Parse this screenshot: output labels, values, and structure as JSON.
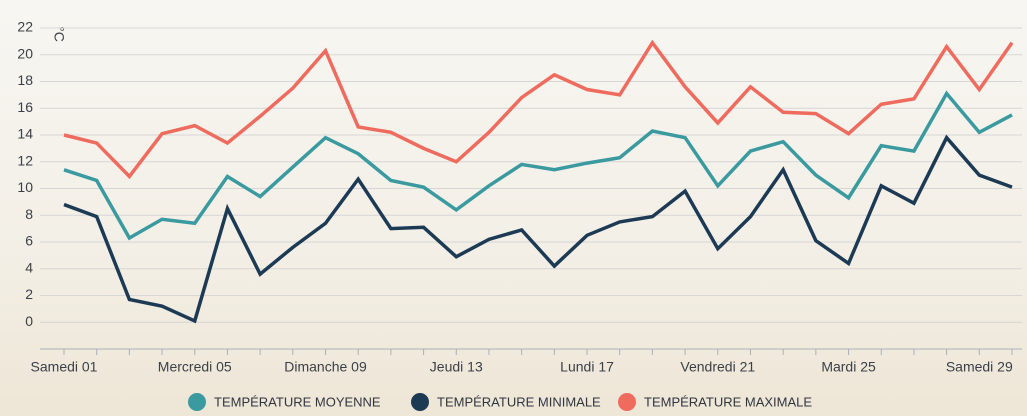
{
  "chart_data": {
    "type": "line",
    "y_label": "°C",
    "categories": [
      "Samedi 01",
      null,
      null,
      null,
      "Mercredi 05",
      null,
      null,
      null,
      "Dimanche 09",
      null,
      null,
      null,
      "Jeudi 13",
      null,
      null,
      null,
      "Lundi 17",
      null,
      null,
      null,
      "Vendredi 21",
      null,
      null,
      null,
      "Mardi 25",
      null,
      null,
      null,
      "Samedi 29",
      null
    ],
    "series": [
      {
        "name": "TEMPÉRATURE MOYENNE",
        "color": "#3a9aa0",
        "values": [
          11.4,
          10.6,
          6.3,
          7.7,
          7.4,
          10.9,
          9.4,
          11.6,
          13.8,
          12.6,
          10.6,
          10.1,
          8.4,
          10.2,
          11.8,
          11.4,
          11.9,
          12.3,
          14.3,
          13.8,
          10.2,
          12.8,
          13.5,
          11.0,
          9.3,
          13.2,
          12.8,
          17.1,
          14.2,
          15.5
        ]
      },
      {
        "name": "TEMPÉRATURE MINIMALE",
        "color": "#1d3a55",
        "values": [
          8.8,
          7.9,
          1.7,
          1.2,
          0.1,
          8.5,
          3.6,
          5.6,
          7.4,
          10.7,
          7.0,
          7.1,
          4.9,
          6.2,
          6.9,
          4.2,
          6.5,
          7.5,
          7.9,
          9.8,
          5.5,
          7.9,
          11.4,
          6.1,
          4.4,
          10.2,
          8.9,
          13.8,
          11.0,
          10.1
        ]
      },
      {
        "name": "TEMPÉRATURE MAXIMALE",
        "color": "#ee6b5e",
        "values": [
          14.0,
          13.4,
          10.9,
          14.1,
          14.7,
          13.4,
          15.4,
          17.5,
          20.3,
          14.6,
          14.2,
          13.0,
          12.0,
          14.2,
          16.8,
          18.5,
          17.4,
          17.0,
          20.9,
          17.6,
          14.9,
          17.6,
          15.7,
          15.6,
          14.1,
          16.3,
          16.7,
          20.6,
          17.4,
          20.9
        ]
      }
    ],
    "ylim": [
      -2,
      22
    ],
    "yticks": [
      0,
      2,
      4,
      6,
      8,
      10,
      12,
      14,
      16,
      18,
      20,
      22
    ],
    "grid": true
  }
}
